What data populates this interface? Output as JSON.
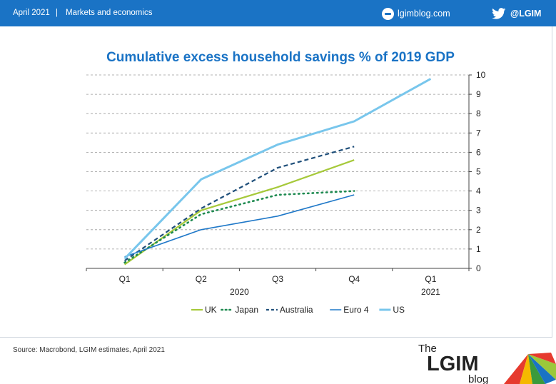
{
  "header": {
    "date": "April 2021",
    "separator": "|",
    "section": "Markets and economics",
    "site": "lgimblog.com",
    "social_handle": "@LGIM",
    "background_color": "#1a73c5",
    "icons": [
      "globe-icon",
      "twitter-bird-icon"
    ]
  },
  "footer": {
    "source": "Source: Macrobond, LGIM estimates, April 2021",
    "logo": {
      "the": "The",
      "name": "LGIM",
      "blog": "blog"
    }
  },
  "chart_data": {
    "type": "line",
    "title": "Cumulative excess household savings % of 2019 GDP",
    "categories": [
      "Q1",
      "Q2",
      "Q3",
      "Q4",
      "Q1"
    ],
    "year_labels": [
      {
        "text": "2020",
        "under": [
          0,
          3
        ]
      },
      {
        "text": "2021",
        "under": [
          4,
          4
        ]
      }
    ],
    "ylim": [
      0,
      10
    ],
    "yticks": [
      "0",
      "1",
      "2",
      "3",
      "4",
      "5",
      "6",
      "7",
      "8",
      "9",
      "10"
    ],
    "y_axis_side": "right",
    "grid": "horizontal dashed",
    "legend_position": "bottom",
    "series": [
      {
        "name": "UK",
        "color": "#a6c93a",
        "style": "solid",
        "values": [
          0.2,
          3.0,
          4.2,
          5.6,
          null
        ]
      },
      {
        "name": "Japan",
        "color": "#1e8a50",
        "style": "dotted",
        "values": [
          0.3,
          2.8,
          3.8,
          4.0,
          null
        ]
      },
      {
        "name": "Australia",
        "color": "#1f4f7a",
        "style": "dashed",
        "values": [
          0.4,
          3.1,
          5.2,
          6.3,
          null
        ]
      },
      {
        "name": "Euro 4",
        "color": "#1f78c8",
        "style": "solid",
        "values": [
          0.6,
          2.0,
          2.7,
          3.8,
          null
        ]
      },
      {
        "name": "US",
        "color": "#78c6ec",
        "style": "solid",
        "values": [
          0.5,
          4.6,
          6.4,
          7.6,
          9.8
        ]
      }
    ]
  }
}
